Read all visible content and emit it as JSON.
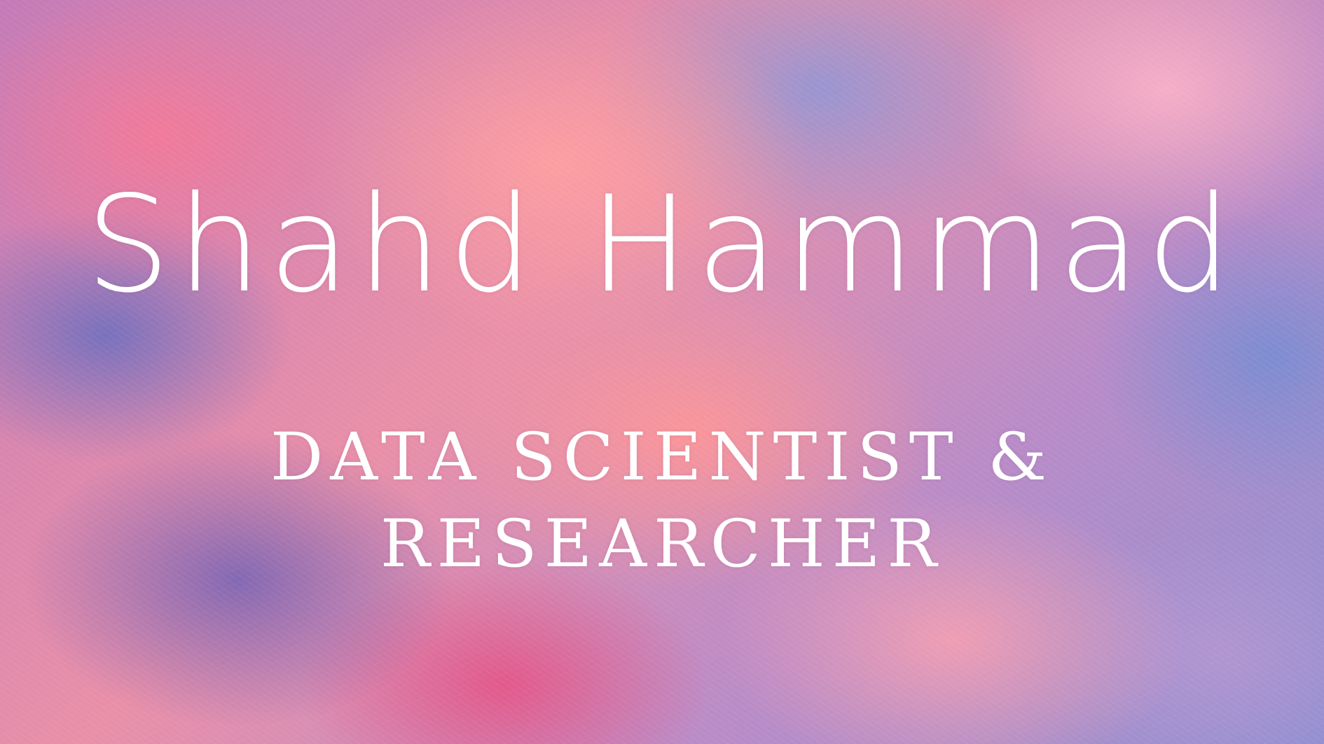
{
  "banner": {
    "name": "Shahd Hammad",
    "role_line1": "DATA SCIENTIST &",
    "role_line2": "RESEARCHER"
  }
}
